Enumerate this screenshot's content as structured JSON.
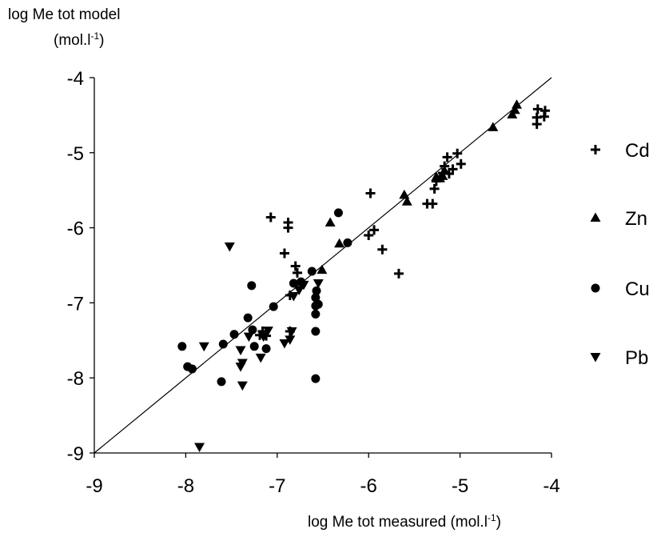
{
  "chart_data": {
    "type": "scatter",
    "ylabel_main": "log  Me tot model",
    "ylabel_unit_base": "(mol.l",
    "ylabel_unit_sup": "-1",
    "ylabel_unit_end": ")",
    "xlabel_base": "log Me tot measured (mol.l",
    "xlabel_sup": "-1",
    "xlabel_end": ")",
    "xlim": [
      -9,
      -4
    ],
    "ylim": [
      -9,
      -4
    ],
    "xticks": [
      "-9",
      "-8",
      "-7",
      "-6",
      "-5",
      "-4"
    ],
    "yticks": [
      "-4",
      "-5",
      "-6",
      "-7",
      "-8",
      "-9"
    ],
    "reference_line": [
      [
        -9,
        -9
      ],
      [
        -4,
        -4
      ]
    ],
    "grid": false,
    "legend_position": "right",
    "series": [
      {
        "name": "Cd",
        "marker": "plus",
        "points": [
          [
            -4.07,
            -4.44
          ],
          [
            -4.08,
            -4.52
          ],
          [
            -4.15,
            -4.42
          ],
          [
            -4.16,
            -4.53
          ],
          [
            -4.16,
            -4.62
          ],
          [
            -4.99,
            -5.15
          ],
          [
            -5.03,
            -5.01
          ],
          [
            -5.08,
            -5.22
          ],
          [
            -5.12,
            -5.28
          ],
          [
            -5.14,
            -5.06
          ],
          [
            -5.17,
            -5.18
          ],
          [
            -5.19,
            -5.27
          ],
          [
            -5.26,
            -5.38
          ],
          [
            -5.28,
            -5.48
          ],
          [
            -5.3,
            -5.68
          ],
          [
            -5.36,
            -5.68
          ],
          [
            -5.67,
            -6.61
          ],
          [
            -5.85,
            -6.29
          ],
          [
            -5.94,
            -6.03
          ],
          [
            -5.98,
            -5.54
          ],
          [
            -6.0,
            -6.1
          ],
          [
            -6.78,
            -6.6
          ],
          [
            -6.8,
            -6.51
          ],
          [
            -6.86,
            -6.9
          ],
          [
            -6.86,
            -7.38
          ],
          [
            -6.88,
            -6.0
          ],
          [
            -6.88,
            -5.93
          ],
          [
            -6.92,
            -6.34
          ],
          [
            -7.07,
            -5.86
          ],
          [
            -7.12,
            -7.44
          ],
          [
            -7.16,
            -7.38
          ],
          [
            -7.19,
            -7.43
          ]
        ]
      },
      {
        "name": "Zn",
        "marker": "triangle-up",
        "points": [
          [
            -4.38,
            -4.36
          ],
          [
            -4.4,
            -4.43
          ],
          [
            -4.43,
            -4.49
          ],
          [
            -4.64,
            -4.66
          ],
          [
            -5.17,
            -5.24
          ],
          [
            -5.19,
            -5.31
          ],
          [
            -5.22,
            -5.34
          ],
          [
            -5.26,
            -5.32
          ],
          [
            -5.58,
            -5.65
          ],
          [
            -5.61,
            -5.56
          ],
          [
            -6.32,
            -6.21
          ],
          [
            -6.42,
            -5.93
          ],
          [
            -6.51,
            -6.56
          ]
        ]
      },
      {
        "name": "Cu",
        "marker": "circle",
        "points": [
          [
            -6.23,
            -6.2
          ],
          [
            -6.33,
            -5.8
          ],
          [
            -6.55,
            -7.02
          ],
          [
            -6.57,
            -6.84
          ],
          [
            -6.58,
            -6.93
          ],
          [
            -6.58,
            -7.04
          ],
          [
            -6.58,
            -7.15
          ],
          [
            -6.58,
            -7.38
          ],
          [
            -6.58,
            -8.01
          ],
          [
            -6.62,
            -6.58
          ],
          [
            -6.74,
            -6.72
          ],
          [
            -6.82,
            -6.74
          ],
          [
            -7.04,
            -7.05
          ],
          [
            -7.12,
            -7.61
          ],
          [
            -7.25,
            -7.58
          ],
          [
            -7.27,
            -7.36
          ],
          [
            -7.28,
            -6.77
          ],
          [
            -7.32,
            -7.2
          ],
          [
            -7.47,
            -7.42
          ],
          [
            -7.59,
            -7.55
          ],
          [
            -7.61,
            -8.05
          ],
          [
            -7.93,
            -7.88
          ],
          [
            -7.98,
            -7.85
          ],
          [
            -8.04,
            -7.58
          ]
        ]
      },
      {
        "name": "Pb",
        "marker": "triangle-down",
        "points": [
          [
            -6.55,
            -6.74
          ],
          [
            -6.71,
            -6.76
          ],
          [
            -6.76,
            -6.83
          ],
          [
            -6.82,
            -6.91
          ],
          [
            -6.84,
            -7.38
          ],
          [
            -6.86,
            -7.49
          ],
          [
            -6.92,
            -7.54
          ],
          [
            -7.1,
            -7.37
          ],
          [
            -7.15,
            -7.45
          ],
          [
            -7.18,
            -7.73
          ],
          [
            -7.31,
            -7.45
          ],
          [
            -7.38,
            -7.8
          ],
          [
            -7.38,
            -8.1
          ],
          [
            -7.4,
            -7.63
          ],
          [
            -7.4,
            -7.85
          ],
          [
            -7.52,
            -6.25
          ],
          [
            -7.8,
            -7.58
          ],
          [
            -7.85,
            -8.92
          ]
        ]
      }
    ]
  }
}
